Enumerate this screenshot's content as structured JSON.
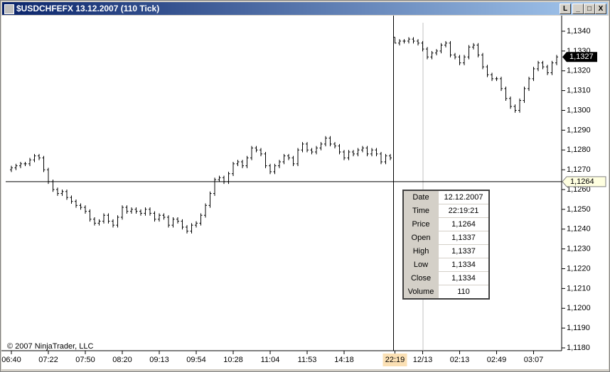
{
  "window": {
    "title": "$USDCHFEFX  13.12.2007 (110 Tick)",
    "buttons": [
      "L",
      "_",
      "□",
      "X"
    ]
  },
  "chart_data": {
    "type": "ohlc",
    "categories": [
      "06:40",
      null,
      null,
      null,
      null,
      null,
      null,
      null,
      "07:22",
      null,
      null,
      null,
      null,
      null,
      null,
      null,
      "07:50",
      null,
      null,
      null,
      null,
      null,
      null,
      null,
      "08:20",
      null,
      null,
      null,
      null,
      null,
      null,
      null,
      "09:13",
      null,
      null,
      null,
      null,
      null,
      null,
      null,
      "09:54",
      null,
      null,
      null,
      null,
      null,
      null,
      null,
      "10:28",
      null,
      null,
      null,
      null,
      null,
      null,
      null,
      "11:04",
      null,
      null,
      null,
      null,
      null,
      null,
      null,
      "11:53",
      null,
      null,
      null,
      null,
      null,
      null,
      null,
      "14:18",
      null,
      null,
      null,
      null,
      null,
      null,
      null,
      null,
      null,
      null,
      "22:19",
      null,
      null,
      null,
      null,
      null,
      "12/13",
      null,
      null,
      null,
      null,
      null,
      null,
      null,
      "02:13",
      null,
      null,
      null,
      null,
      null,
      null,
      null,
      "02:49",
      null,
      null,
      null,
      null,
      null,
      null,
      null,
      "03:07",
      null,
      null,
      null,
      null,
      null
    ],
    "open": [
      1.127,
      1.1271,
      1.1272,
      1.1273,
      1.1273,
      1.1275,
      1.1277,
      1.1276,
      1.127,
      1.1264,
      1.126,
      1.1258,
      1.1259,
      1.1256,
      1.1254,
      1.1252,
      1.1251,
      1.1249,
      1.1245,
      1.1243,
      1.1244,
      1.1247,
      1.1244,
      1.1242,
      1.1246,
      1.1251,
      1.1249,
      1.125,
      1.1249,
      1.1248,
      1.125,
      1.1248,
      1.1245,
      1.1247,
      1.1246,
      1.1242,
      1.1245,
      1.1244,
      1.1241,
      1.1239,
      1.1242,
      1.1243,
      1.1247,
      1.1252,
      1.1258,
      1.1265,
      1.1266,
      1.1264,
      1.1268,
      1.1273,
      1.1274,
      1.1272,
      1.1276,
      1.1281,
      1.128,
      1.1278,
      1.1272,
      1.1269,
      1.1272,
      1.1274,
      1.1277,
      1.1276,
      1.1273,
      1.128,
      1.1283,
      1.128,
      1.1279,
      1.1281,
      1.1283,
      1.1286,
      1.1283,
      1.1282,
      1.1279,
      1.1276,
      1.1279,
      1.1278,
      1.128,
      1.1281,
      1.1278,
      1.128,
      1.1278,
      1.1274,
      1.1277,
      1.1337,
      1.1334,
      1.1335,
      1.1335,
      1.1336,
      1.1335,
      1.1334,
      1.1331,
      1.1327,
      1.1329,
      1.133,
      1.1333,
      1.1334,
      1.1328,
      1.1327,
      1.1324,
      1.1327,
      1.1332,
      1.1333,
      1.1328,
      1.1322,
      1.1318,
      1.1316,
      1.1316,
      1.1311,
      1.1306,
      1.1302,
      1.13,
      1.1305,
      1.1311,
      1.1316,
      1.1321,
      1.1324,
      1.1322,
      1.1319,
      1.1324
    ],
    "high": [
      1.1272,
      1.1273,
      1.1274,
      1.1274,
      1.1276,
      1.1278,
      1.1278,
      1.1277,
      1.1271,
      1.1265,
      1.1261,
      1.126,
      1.126,
      1.1257,
      1.1255,
      1.1253,
      1.1252,
      1.125,
      1.1246,
      1.1245,
      1.1248,
      1.1248,
      1.1245,
      1.1247,
      1.1252,
      1.1252,
      1.1251,
      1.1251,
      1.125,
      1.1251,
      1.1251,
      1.1249,
      1.1248,
      1.1248,
      1.1247,
      1.1246,
      1.1246,
      1.1245,
      1.1242,
      1.1243,
      1.1244,
      1.1248,
      1.1253,
      1.1259,
      1.1266,
      1.1267,
      1.1267,
      1.1269,
      1.1274,
      1.1275,
      1.1275,
      1.1277,
      1.1282,
      1.1282,
      1.1281,
      1.1279,
      1.1273,
      1.1273,
      1.1275,
      1.1278,
      1.1278,
      1.1277,
      1.1281,
      1.1284,
      1.1284,
      1.1281,
      1.1282,
      1.1284,
      1.1287,
      1.1287,
      1.1284,
      1.1283,
      1.128,
      1.128,
      1.128,
      1.1281,
      1.1282,
      1.1282,
      1.1281,
      1.1281,
      1.1279,
      1.1278,
      1.1278,
      1.1337,
      1.1336,
      1.1336,
      1.1337,
      1.1337,
      1.1336,
      1.1335,
      1.1332,
      1.133,
      1.1331,
      1.1334,
      1.1335,
      1.1335,
      1.1329,
      1.1328,
      1.1328,
      1.1333,
      1.1334,
      1.1334,
      1.1329,
      1.1323,
      1.1319,
      1.1317,
      1.1317,
      1.1312,
      1.1307,
      1.1303,
      1.1306,
      1.1312,
      1.1317,
      1.1322,
      1.1325,
      1.1325,
      1.1323,
      1.1325,
      1.1328
    ],
    "low": [
      1.1269,
      1.127,
      1.1271,
      1.1272,
      1.1272,
      1.1274,
      1.1275,
      1.1269,
      1.1263,
      1.1259,
      1.1257,
      1.1257,
      1.1255,
      1.1253,
      1.1251,
      1.125,
      1.1248,
      1.1244,
      1.1242,
      1.1242,
      1.1243,
      1.1243,
      1.1241,
      1.1241,
      1.1245,
      1.1248,
      1.1248,
      1.1248,
      1.1247,
      1.1247,
      1.1247,
      1.1244,
      1.1244,
      1.1245,
      1.1241,
      1.1241,
      1.1243,
      1.124,
      1.1238,
      1.1238,
      1.1241,
      1.1242,
      1.1246,
      1.1251,
      1.1257,
      1.1264,
      1.1263,
      1.1263,
      1.1267,
      1.1272,
      1.1271,
      1.1271,
      1.1275,
      1.1279,
      1.1277,
      1.1271,
      1.1268,
      1.1268,
      1.1271,
      1.1273,
      1.1275,
      1.1272,
      1.1272,
      1.1279,
      1.1279,
      1.1278,
      1.1278,
      1.128,
      1.1282,
      1.1282,
      1.1281,
      1.1278,
      1.1275,
      1.1275,
      1.1277,
      1.1277,
      1.1279,
      1.1277,
      1.1277,
      1.1277,
      1.1273,
      1.1273,
      1.1275,
      1.1334,
      1.1333,
      1.1334,
      1.1334,
      1.1334,
      1.1333,
      1.133,
      1.1326,
      1.1326,
      1.1328,
      1.1329,
      1.1332,
      1.1327,
      1.1326,
      1.1323,
      1.1323,
      1.1326,
      1.1331,
      1.1327,
      1.1321,
      1.1317,
      1.1315,
      1.1315,
      1.131,
      1.1305,
      1.1301,
      1.1299,
      1.1299,
      1.1304,
      1.131,
      1.1315,
      1.132,
      1.1321,
      1.1318,
      1.1318,
      1.1323
    ],
    "close": [
      1.1271,
      1.1272,
      1.1273,
      1.1273,
      1.1275,
      1.1277,
      1.1276,
      1.127,
      1.1264,
      1.126,
      1.1258,
      1.1259,
      1.1256,
      1.1254,
      1.1252,
      1.1251,
      1.1249,
      1.1245,
      1.1243,
      1.1244,
      1.1247,
      1.1244,
      1.1242,
      1.1246,
      1.1251,
      1.1249,
      1.125,
      1.1249,
      1.1248,
      1.125,
      1.1248,
      1.1245,
      1.1247,
      1.1246,
      1.1242,
      1.1245,
      1.1244,
      1.1241,
      1.1239,
      1.1242,
      1.1243,
      1.1247,
      1.1252,
      1.1258,
      1.1265,
      1.1266,
      1.1264,
      1.1268,
      1.1273,
      1.1274,
      1.1272,
      1.1276,
      1.1281,
      1.128,
      1.1278,
      1.1272,
      1.1269,
      1.1272,
      1.1274,
      1.1277,
      1.1276,
      1.1273,
      1.128,
      1.1283,
      1.128,
      1.1279,
      1.1281,
      1.1283,
      1.1286,
      1.1283,
      1.1282,
      1.1279,
      1.1276,
      1.1279,
      1.1278,
      1.128,
      1.1281,
      1.1278,
      1.128,
      1.1278,
      1.1274,
      1.1277,
      1.1276,
      1.1334,
      1.1335,
      1.1335,
      1.1336,
      1.1335,
      1.1334,
      1.1331,
      1.1327,
      1.1329,
      1.133,
      1.1333,
      1.1334,
      1.1328,
      1.1327,
      1.1324,
      1.1327,
      1.1332,
      1.1333,
      1.1328,
      1.1322,
      1.1318,
      1.1316,
      1.1316,
      1.1311,
      1.1306,
      1.1302,
      1.13,
      1.1305,
      1.1311,
      1.1316,
      1.1321,
      1.1324,
      1.1322,
      1.1319,
      1.1324,
      1.1327
    ],
    "color": "#000000",
    "ylim": [
      1.1178,
      1.1342
    ],
    "yticks": [
      {
        "value": 1.118,
        "label": "1,1180"
      },
      {
        "value": 1.119,
        "label": "1,1190"
      },
      {
        "value": 1.12,
        "label": "1,1200"
      },
      {
        "value": 1.121,
        "label": "1,1210"
      },
      {
        "value": 1.122,
        "label": "1,1220"
      },
      {
        "value": 1.123,
        "label": "1,1230"
      },
      {
        "value": 1.124,
        "label": "1,1240"
      },
      {
        "value": 1.125,
        "label": "1,1250"
      },
      {
        "value": 1.126,
        "label": "1,1260"
      },
      {
        "value": 1.127,
        "label": "1,1270"
      },
      {
        "value": 1.128,
        "label": "1,1280"
      },
      {
        "value": 1.129,
        "label": "1,1290"
      },
      {
        "value": 1.13,
        "label": "1,1300"
      },
      {
        "value": 1.131,
        "label": "1,1310"
      },
      {
        "value": 1.132,
        "label": "1,1320"
      },
      {
        "value": 1.133,
        "label": "1,1330"
      },
      {
        "value": 1.134,
        "label": "1,1340"
      }
    ],
    "crosshair": {
      "value": 1.1264,
      "label": "1,1264"
    },
    "last_price": {
      "value": 1.1327,
      "label": "1,1327"
    },
    "copyright": "© 2007 NinjaTrader, LLC"
  },
  "data_box": {
    "rows": [
      [
        "Date",
        "12.12.2007"
      ],
      [
        "Time",
        "22:19:21"
      ],
      [
        "Price",
        "1,1264"
      ],
      [
        "Open",
        "1,1337"
      ],
      [
        "High",
        "1,1337"
      ],
      [
        "Low",
        "1,1334"
      ],
      [
        "Close",
        "1,1334"
      ],
      [
        "Volume",
        "110"
      ]
    ]
  }
}
